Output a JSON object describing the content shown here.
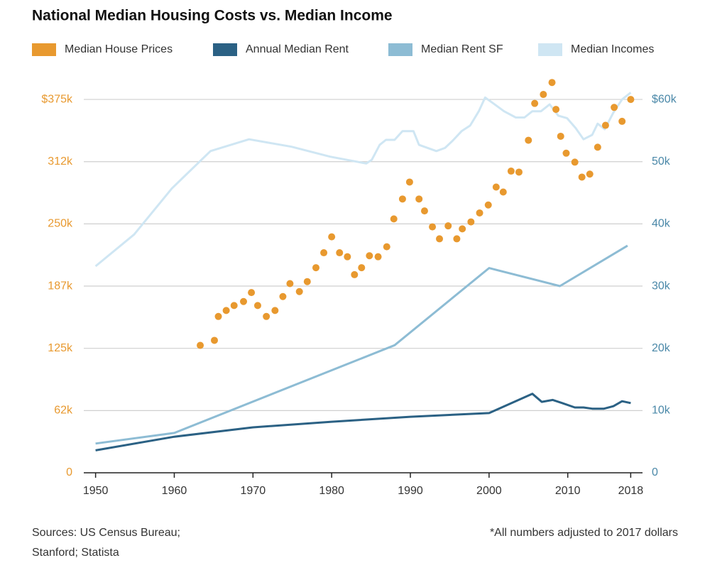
{
  "chart_data": {
    "type": "line",
    "title": "National Median Housing Costs vs. Median Income",
    "xlim": [
      1948.5,
      2019.5
    ],
    "xticks": [
      1950,
      1960,
      1970,
      1980,
      1990,
      2000,
      2010,
      2018
    ],
    "ylim": [
      0,
      400000
    ],
    "yticks": [
      0,
      {
        "value": 62500,
        "label": "62k"
      },
      {
        "value": 125000,
        "label": "125k"
      },
      {
        "value": 187500,
        "label": "187k"
      },
      {
        "value": 250000,
        "label": "250k"
      },
      {
        "value": 312500,
        "label": "312k"
      },
      {
        "value": 375000,
        "label": "$375k"
      }
    ],
    "y2lim": [
      0,
      64000
    ],
    "y2ticks": [
      0,
      {
        "value": 10000,
        "label": "10k"
      },
      {
        "value": 20000,
        "label": "20k"
      },
      {
        "value": 30000,
        "label": "30k"
      },
      {
        "value": 40000,
        "label": "40k"
      },
      {
        "value": 50000,
        "label": "50k"
      },
      {
        "value": 60000,
        "label": "$60k"
      }
    ],
    "ycolor": "#e8992f",
    "y2color": "#4a88a8",
    "grid": true,
    "series": [
      {
        "name": "Median House Prices",
        "color": "#e8992f",
        "type": "scatter",
        "x": [
          1963.3,
          1965.1,
          1965.6,
          1966.6,
          1967.6,
          1968.8,
          1969.8,
          1970.6,
          1971.7,
          1972.8,
          1973.8,
          1974.7,
          1975.9,
          1976.9,
          1978.0,
          1979.0,
          1980.0,
          1981.0,
          1982.0,
          1982.9,
          1983.8,
          1984.8,
          1985.9,
          1987.0,
          1987.9,
          1989.0,
          1989.9,
          1991.1,
          1991.8,
          1992.8,
          1993.7,
          1994.8,
          1995.9,
          1996.6,
          1997.7,
          1998.8,
          1999.9,
          2000.9,
          2001.8,
          2002.8,
          2003.8,
          2005.0,
          2005.8,
          2006.9,
          2008.0,
          2008.5,
          2009.1,
          2009.8,
          2010.9,
          2011.8,
          2012.8,
          2013.8,
          2014.8,
          2015.9,
          2016.9,
          2018.0
        ],
        "values": [
          128000,
          133000,
          157000,
          163000,
          168000,
          172000,
          181000,
          168000,
          157000,
          163000,
          177000,
          190000,
          182000,
          192000,
          206000,
          221000,
          237000,
          221000,
          217000,
          199000,
          206000,
          218000,
          217000,
          227000,
          255000,
          275000,
          292000,
          275000,
          263000,
          247000,
          235000,
          248000,
          235000,
          245000,
          252000,
          261000,
          269000,
          287000,
          282000,
          303000,
          302000,
          334000,
          371000,
          380000,
          392000,
          365000,
          338000,
          321000,
          312000,
          297000,
          300000,
          327000,
          349000,
          367000,
          353000,
          375000
        ]
      },
      {
        "name": "Annual Median Rent",
        "color": "#2b6184",
        "type": "line",
        "axis": "y2",
        "x": [
          1950,
          1960,
          1970,
          1980,
          1990,
          2000,
          2005.5,
          2006.7,
          2008.1,
          2009.3,
          2010.9,
          2012,
          2013.1,
          2014.6,
          2015.8,
          2016.9,
          2018
        ],
        "values": [
          3600,
          5800,
          7300,
          8200,
          9000,
          9600,
          12700,
          11400,
          11700,
          11200,
          10500,
          10500,
          10300,
          10300,
          10700,
          11500,
          11200
        ]
      },
      {
        "name": "Median Rent SF",
        "color": "#8dbcd4",
        "type": "line",
        "axis": "y2",
        "x": [
          1950,
          1960,
          1988,
          2000,
          2009,
          2017.6
        ],
        "values": [
          4700,
          6400,
          20500,
          32900,
          30000,
          36500
        ]
      },
      {
        "name": "Median Incomes",
        "color": "#cfe6f3",
        "type": "line",
        "axis": "y2",
        "x": [
          1950,
          1954.9,
          1959.7,
          1964.6,
          1969.5,
          1974.9,
          1979.8,
          1984.4,
          1985.1,
          1986.1,
          1986.9,
          1988.0,
          1989.0,
          1990.4,
          1991.1,
          1993.3,
          1994.4,
          1995.4,
          1996.5,
          1997.6,
          1998.7,
          1999.5,
          2000.5,
          2001.9,
          2003.4,
          2004.5,
          2005.5,
          2006.6,
          2007.7,
          2008.8,
          2009.9,
          2011.0,
          2012.0,
          2013.1,
          2013.8,
          2014.7,
          2015.8,
          2016.9,
          2018.0
        ],
        "values": [
          33200,
          38300,
          45700,
          51700,
          53600,
          52400,
          50800,
          49700,
          50300,
          52700,
          53500,
          53500,
          54900,
          54900,
          52700,
          51700,
          52200,
          53400,
          54900,
          55800,
          58100,
          60300,
          59400,
          58100,
          57100,
          57100,
          58100,
          58100,
          59200,
          57400,
          57000,
          55400,
          53600,
          54300,
          56100,
          55200,
          57900,
          60000,
          61100
        ]
      }
    ],
    "source": [
      "Sources: US Census Bureau;",
      "Stanford; Statista"
    ],
    "note": "*All numbers adjusted to 2017  dollars"
  }
}
